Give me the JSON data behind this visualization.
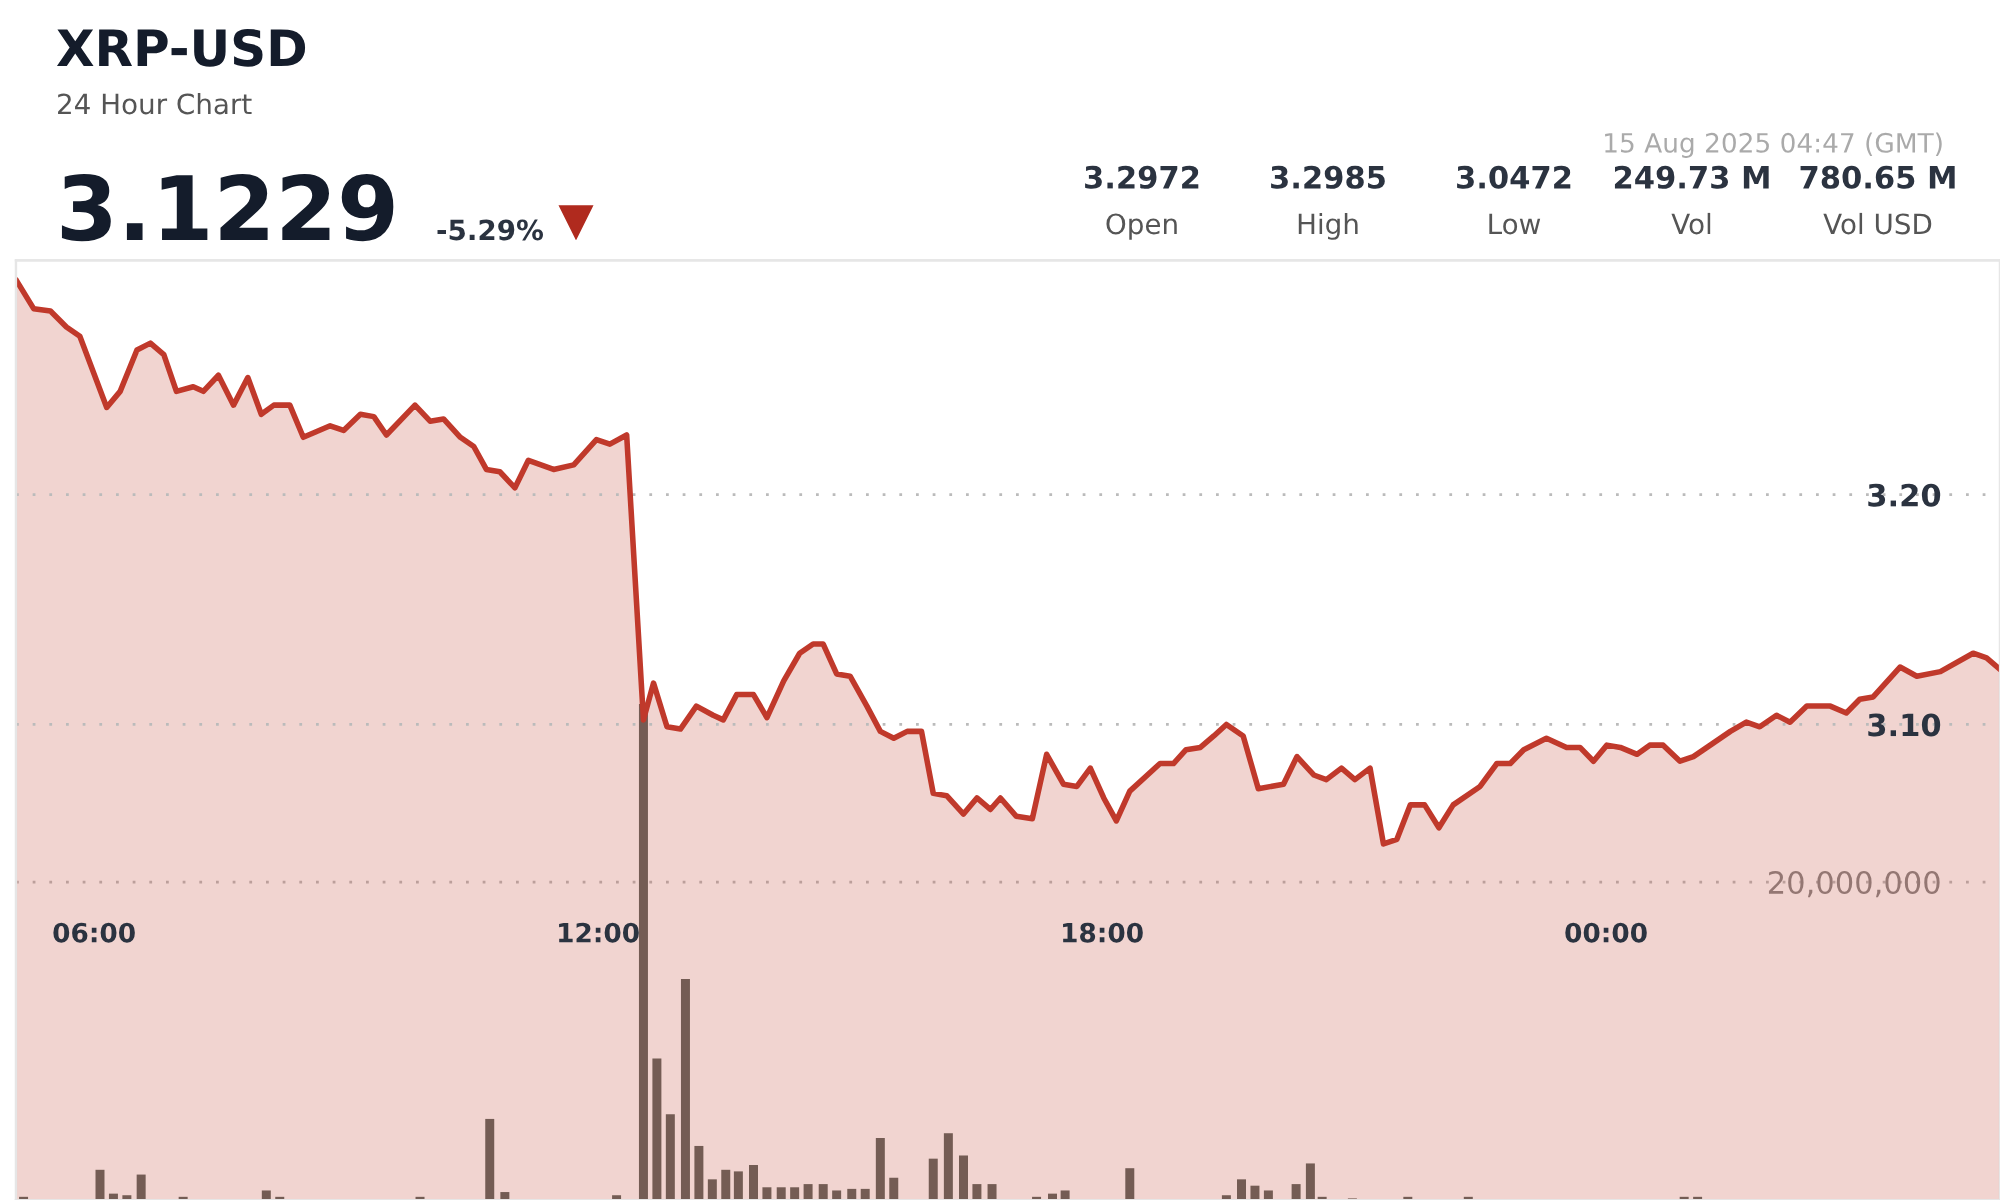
{
  "chart_data": {
    "type": "area",
    "title": "XRP-USD",
    "subtitle": "24 Hour Chart",
    "annotations": [
      "3.1229",
      "-5.29%",
      "3.2972",
      "Open",
      "3.2985",
      "High",
      "3.0472",
      "Low",
      "249.73 M",
      "Vol",
      "780.65 M",
      "Vol USD",
      "15 Aug 2025 04:47 (GMT)"
    ],
    "xlim": [
      5.07,
      28.69
    ],
    "xticks": [
      {
        "value": 6,
        "label": "06:00"
      },
      {
        "value": 12,
        "label": "12:00"
      },
      {
        "value": 18,
        "label": "18:00"
      },
      {
        "value": 24,
        "label": "00:00"
      }
    ],
    "ylim": [
      2.893,
      3.302
    ],
    "yticks": [
      {
        "value": 3.1,
        "label": "3.10"
      },
      {
        "value": 3.2,
        "label": "3.20"
      }
    ],
    "y2lim": [
      0,
      59100000
    ],
    "y2ticks": [
      {
        "value": 20000000,
        "label": "20,000,000"
      }
    ],
    "grid": "y",
    "marker": "none",
    "line_style": "solid",
    "series": [
      {
        "color": "#c0392b",
        "x": [
          5.08,
          5.28,
          5.48,
          5.67,
          5.83,
          6.15,
          6.31,
          6.51,
          6.67,
          6.83,
          6.98,
          7.18,
          7.3,
          7.48,
          7.66,
          7.83,
          7.99,
          8.14,
          8.33,
          8.49,
          8.81,
          8.97,
          9.17,
          9.33,
          9.48,
          9.82,
          10.0,
          10.16,
          10.36,
          10.52,
          10.67,
          10.83,
          11.01,
          11.17,
          11.47,
          11.71,
          11.98,
          12.14,
          12.34,
          12.54,
          12.66,
          12.82,
          12.98,
          13.17,
          13.37,
          13.49,
          13.65,
          13.85,
          14.01,
          14.21,
          14.4,
          14.56,
          14.68,
          14.84,
          15.0,
          15.2,
          15.36,
          15.52,
          15.68,
          15.85,
          15.99,
          16.15,
          16.35,
          16.51,
          16.67,
          16.79,
          16.98,
          17.17,
          17.34,
          17.54,
          17.7,
          17.86,
          18.02,
          18.17,
          18.33,
          18.69,
          18.85,
          19.0,
          19.17,
          19.33,
          19.48,
          19.68,
          19.86,
          20.16,
          20.32,
          20.52,
          20.67,
          20.85,
          21.01,
          21.19,
          21.35,
          21.51,
          21.67,
          21.84,
          22.01,
          22.18,
          22.5,
          22.7,
          22.86,
          23.02,
          23.29,
          23.53,
          23.69,
          23.85,
          24.01,
          24.17,
          24.37,
          24.52,
          24.68,
          24.88,
          25.04,
          25.28,
          25.48,
          25.67,
          25.83,
          26.03,
          26.19,
          26.39,
          26.67,
          26.86,
          27.02,
          27.18,
          27.5,
          27.7,
          27.98,
          28.37,
          28.53,
          28.69
        ],
        "values": [
          3.293,
          3.281,
          3.28,
          3.273,
          3.269,
          3.238,
          3.245,
          3.263,
          3.266,
          3.261,
          3.245,
          3.247,
          3.245,
          3.252,
          3.239,
          3.251,
          3.235,
          3.239,
          3.239,
          3.225,
          3.23,
          3.228,
          3.235,
          3.234,
          3.226,
          3.239,
          3.232,
          3.233,
          3.225,
          3.221,
          3.211,
          3.21,
          3.203,
          3.215,
          3.211,
          3.213,
          3.224,
          3.222,
          3.226,
          3.102,
          3.118,
          3.099,
          3.098,
          3.108,
          3.104,
          3.102,
          3.113,
          3.113,
          3.103,
          3.119,
          3.131,
          3.135,
          3.135,
          3.122,
          3.121,
          3.108,
          3.097,
          3.094,
          3.097,
          3.097,
          3.07,
          3.069,
          3.061,
          3.068,
          3.063,
          3.068,
          3.06,
          3.059,
          3.087,
          3.074,
          3.073,
          3.081,
          3.068,
          3.058,
          3.071,
          3.083,
          3.083,
          3.089,
          3.09,
          3.095,
          3.1,
          3.095,
          3.072,
          3.074,
          3.086,
          3.078,
          3.076,
          3.081,
          3.076,
          3.081,
          3.048,
          3.05,
          3.065,
          3.065,
          3.055,
          3.065,
          3.073,
          3.083,
          3.083,
          3.089,
          3.094,
          3.09,
          3.09,
          3.084,
          3.091,
          3.09,
          3.087,
          3.091,
          3.091,
          3.084,
          3.086,
          3.092,
          3.097,
          3.101,
          3.099,
          3.104,
          3.101,
          3.108,
          3.108,
          3.105,
          3.111,
          3.112,
          3.125,
          3.121,
          3.123,
          3.131,
          3.129,
          3.124
        ]
      },
      {
        "type": "bar",
        "axis": "y2",
        "color": "#5f6660",
        "x": [
          5.16,
          6.07,
          6.23,
          6.39,
          6.56,
          7.06,
          8.05,
          8.21,
          9.88,
          10.71,
          10.89,
          12.22,
          12.54,
          12.7,
          12.86,
          13.04,
          13.2,
          13.36,
          13.52,
          13.67,
          13.85,
          14.01,
          14.18,
          14.34,
          14.5,
          14.68,
          14.84,
          15.02,
          15.18,
          15.36,
          15.52,
          15.99,
          16.17,
          16.35,
          16.51,
          16.69,
          17.22,
          17.41,
          17.56,
          18.33,
          19.48,
          19.66,
          19.82,
          19.98,
          20.31,
          20.48,
          20.62,
          20.98,
          21.64,
          22.36,
          24.93,
          25.09
        ],
        "values": [
          200000,
          1900000,
          400000,
          300000,
          1600000,
          200000,
          600000,
          200000,
          200000,
          5100000,
          500000,
          300000,
          31200000,
          8900000,
          5400000,
          13900000,
          3400000,
          1300000,
          1900000,
          1800000,
          2200000,
          800000,
          800000,
          800000,
          1000000,
          1000000,
          600000,
          700000,
          700000,
          3900000,
          1400000,
          2600000,
          4200000,
          2800000,
          1000000,
          1000000,
          200000,
          400000,
          600000,
          2000000,
          300000,
          1300000,
          900000,
          600000,
          1000000,
          2300000,
          200000,
          100000,
          200000,
          200000,
          200000,
          200000
        ]
      }
    ]
  }
}
